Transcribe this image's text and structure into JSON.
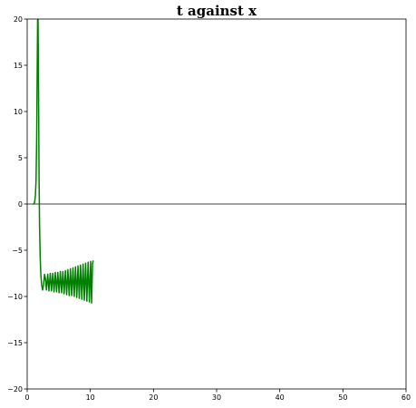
{
  "chart_data": {
    "type": "line",
    "title": "t against x",
    "xlabel": "",
    "ylabel": "",
    "xlim": [
      0,
      60
    ],
    "ylim": [
      -20,
      20
    ],
    "x_ticks": [
      0,
      10,
      20,
      30,
      40,
      50,
      60
    ],
    "y_ticks": [
      -20,
      -15,
      -10,
      -5,
      0,
      5,
      10,
      15,
      20
    ],
    "grid": false,
    "zero_line": true,
    "legend": "none",
    "series": [
      {
        "color": "#008000",
        "points": [
          [
            0.9,
            -0.05
          ],
          [
            1.0,
            0.0
          ],
          [
            1.1,
            0.05
          ],
          [
            1.2,
            0.3
          ],
          [
            1.3,
            0.9
          ],
          [
            1.4,
            2.5
          ],
          [
            1.5,
            7.0
          ],
          [
            1.58,
            14.0
          ],
          [
            1.65,
            20.0
          ],
          [
            1.72,
            20.0
          ],
          [
            1.8,
            12.0
          ],
          [
            1.88,
            3.0
          ],
          [
            1.95,
            -2.0
          ],
          [
            2.05,
            -5.5
          ],
          [
            2.15,
            -7.5
          ],
          [
            2.3,
            -8.8
          ],
          [
            2.45,
            -9.3
          ],
          [
            2.6,
            -8.7
          ],
          [
            2.75,
            -7.6
          ],
          [
            2.9,
            -8.1
          ],
          [
            3.05,
            -9.3
          ],
          [
            3.25,
            -7.6
          ],
          [
            3.45,
            -9.4
          ],
          [
            3.65,
            -7.5
          ],
          [
            3.85,
            -9.4
          ],
          [
            4.05,
            -7.5
          ],
          [
            4.25,
            -9.5
          ],
          [
            4.45,
            -7.4
          ],
          [
            4.65,
            -9.5
          ],
          [
            4.85,
            -7.4
          ],
          [
            5.05,
            -9.6
          ],
          [
            5.25,
            -7.3
          ],
          [
            5.45,
            -9.6
          ],
          [
            5.65,
            -7.3
          ],
          [
            5.85,
            -9.7
          ],
          [
            6.05,
            -7.2
          ],
          [
            6.25,
            -9.8
          ],
          [
            6.45,
            -7.1
          ],
          [
            6.65,
            -9.9
          ],
          [
            6.85,
            -7.0
          ],
          [
            7.05,
            -9.9
          ],
          [
            7.25,
            -6.9
          ],
          [
            7.45,
            -10.0
          ],
          [
            7.65,
            -6.8
          ],
          [
            7.85,
            -10.1
          ],
          [
            8.05,
            -6.7
          ],
          [
            8.25,
            -10.2
          ],
          [
            8.45,
            -6.6
          ],
          [
            8.65,
            -10.3
          ],
          [
            8.85,
            -6.5
          ],
          [
            9.05,
            -10.4
          ],
          [
            9.25,
            -6.4
          ],
          [
            9.45,
            -10.5
          ],
          [
            9.65,
            -6.3
          ],
          [
            9.85,
            -10.6
          ],
          [
            10.05,
            -6.2
          ],
          [
            10.2,
            -10.7
          ],
          [
            10.35,
            -6.5
          ],
          [
            10.45,
            -6.1
          ]
        ]
      }
    ]
  }
}
